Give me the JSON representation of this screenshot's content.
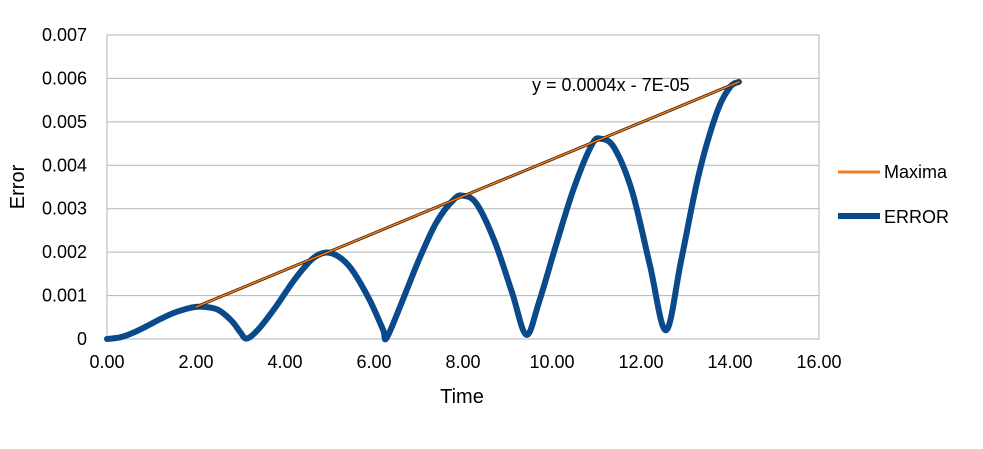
{
  "chart_data": {
    "type": "line",
    "title": "",
    "xlabel": "Time",
    "ylabel": "Error",
    "xlim": [
      0,
      16
    ],
    "ylim": [
      0,
      0.007
    ],
    "x_ticks": [
      "0.00",
      "2.00",
      "4.00",
      "6.00",
      "8.00",
      "10.00",
      "12.00",
      "14.00",
      "16.00"
    ],
    "y_ticks": [
      "0",
      "0.001",
      "0.002",
      "0.003",
      "0.004",
      "0.005",
      "0.006",
      "0.007"
    ],
    "grid": "horizontal",
    "legend_position": "right",
    "trendline_equation": "y = 0.0004x - 7E-05",
    "series": [
      {
        "name": "Maxima",
        "color": "#f07f1e",
        "style": "thin",
        "points": [
          [
            2.0,
            0.00074
          ],
          [
            14.2,
            0.00592
          ]
        ]
      },
      {
        "name": "ERROR",
        "color": "#0a4a8a",
        "style": "thick",
        "points": [
          [
            0.0,
            0.0
          ],
          [
            0.3,
            4e-05
          ],
          [
            0.6,
            0.00015
          ],
          [
            0.9,
            0.0003
          ],
          [
            1.2,
            0.00046
          ],
          [
            1.5,
            0.0006
          ],
          [
            1.8,
            0.0007
          ],
          [
            2.0,
            0.00074
          ],
          [
            2.2,
            0.00074
          ],
          [
            2.5,
            0.00067
          ],
          [
            2.8,
            0.00042
          ],
          [
            3.0,
            0.00015
          ],
          [
            3.14,
            1e-05
          ],
          [
            3.4,
            0.00022
          ],
          [
            3.8,
            0.00075
          ],
          [
            4.2,
            0.00135
          ],
          [
            4.6,
            0.00183
          ],
          [
            4.9,
            0.00199
          ],
          [
            5.2,
            0.0019
          ],
          [
            5.5,
            0.0016
          ],
          [
            5.9,
            0.0009
          ],
          [
            6.2,
            0.00022
          ],
          [
            6.28,
            2e-05
          ],
          [
            6.6,
            0.00078
          ],
          [
            7.0,
            0.0018
          ],
          [
            7.4,
            0.00268
          ],
          [
            7.8,
            0.00322
          ],
          [
            8.0,
            0.0033
          ],
          [
            8.3,
            0.00312
          ],
          [
            8.7,
            0.00228
          ],
          [
            9.1,
            0.00108
          ],
          [
            9.42,
            0.0001
          ],
          [
            9.7,
            0.00082
          ],
          [
            10.1,
            0.0022
          ],
          [
            10.5,
            0.0035
          ],
          [
            10.9,
            0.00448
          ],
          [
            11.1,
            0.00461
          ],
          [
            11.4,
            0.0044
          ],
          [
            11.8,
            0.0034
          ],
          [
            12.2,
            0.0017
          ],
          [
            12.56,
            0.0002
          ],
          [
            12.9,
            0.0018
          ],
          [
            13.3,
            0.0038
          ],
          [
            13.7,
            0.0052
          ],
          [
            14.0,
            0.0058
          ],
          [
            14.2,
            0.00592
          ]
        ]
      }
    ]
  }
}
